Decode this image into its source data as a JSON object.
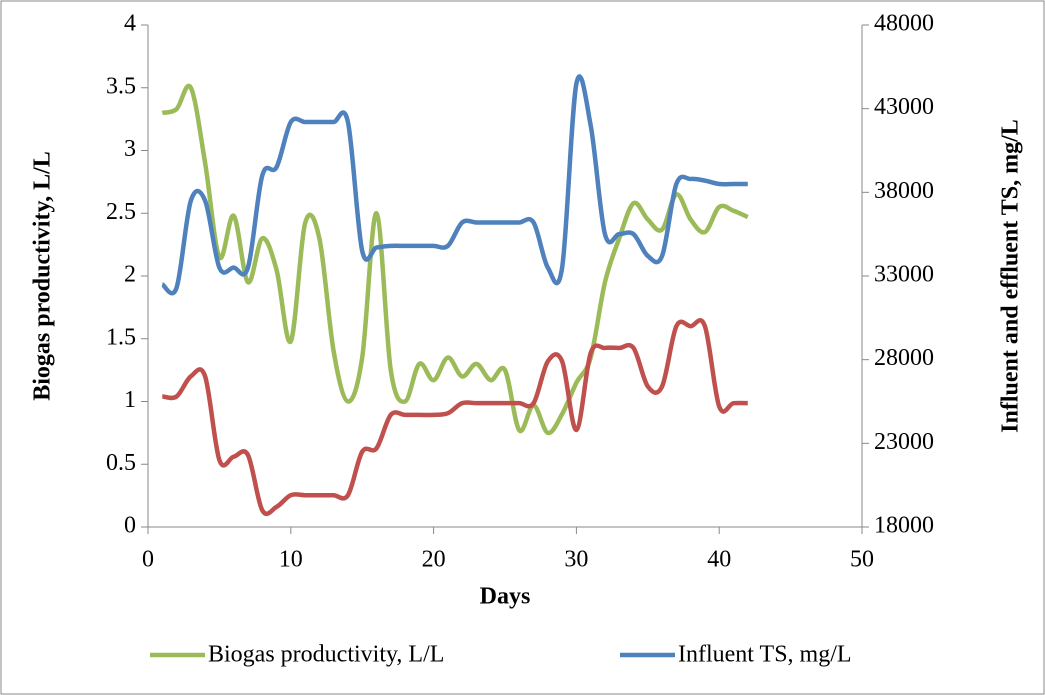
{
  "chart_data": {
    "type": "line",
    "x_label": "Days",
    "y_label": "Biogas productivity, L/L",
    "y2_label": "Influent and effluent TS, mg/L",
    "x": [
      1,
      2,
      3,
      4,
      5,
      6,
      7,
      8,
      9,
      10,
      11,
      12,
      13,
      14,
      15,
      16,
      17,
      18,
      19,
      20,
      21,
      22,
      23,
      24,
      25,
      26,
      27,
      28,
      29,
      30,
      31,
      32,
      33,
      34,
      35,
      36,
      37,
      38,
      39,
      40,
      41,
      42
    ],
    "xlim": [
      0,
      50
    ],
    "xticks": [
      0,
      10,
      20,
      30,
      40,
      50
    ],
    "ylim": [
      0,
      4
    ],
    "yticks": [
      0,
      0.5,
      1,
      1.5,
      2,
      2.5,
      3,
      3.5,
      4
    ],
    "y2lim": [
      18000,
      48000
    ],
    "y2ticks": [
      18000,
      23000,
      28000,
      33000,
      38000,
      43000,
      48000
    ],
    "series": [
      {
        "name": "Biogas productivity, L/L",
        "color": "#9bbb59",
        "values": [
          3.3,
          3.33,
          3.5,
          2.9,
          2.15,
          2.48,
          1.95,
          2.3,
          2.05,
          1.48,
          2.42,
          2.3,
          1.4,
          1.0,
          1.35,
          2.5,
          1.25,
          1.0,
          1.3,
          1.17,
          1.35,
          1.2,
          1.3,
          1.17,
          1.25,
          0.77,
          0.97,
          0.75,
          0.9,
          1.15,
          1.35,
          1.95,
          2.3,
          2.58,
          2.45,
          2.37,
          2.65,
          2.45,
          2.35,
          2.55,
          2.52,
          2.47
        ]
      },
      {
        "name": "Influent TS, mg/L",
        "color": "#4f81bd",
        "axis": "y2",
        "values": [
          32500,
          32300,
          37500,
          37500,
          33500,
          33500,
          33500,
          39000,
          39500,
          42200,
          42200,
          42200,
          42200,
          42200,
          34500,
          34700,
          34800,
          34800,
          34800,
          34800,
          34800,
          36200,
          36200,
          36200,
          36200,
          36200,
          36200,
          33500,
          33500,
          44500,
          42000,
          35500,
          35500,
          35500,
          34200,
          34200,
          38500,
          38800,
          38700,
          38500,
          38500,
          38500
        ]
      },
      {
        "color": "#c0504d",
        "axis": "y2",
        "values": [
          25800,
          25800,
          27000,
          27000,
          22000,
          22200,
          22300,
          19000,
          19200,
          19900,
          19900,
          19900,
          19900,
          19900,
          22500,
          22700,
          24700,
          24700,
          24700,
          24700,
          24800,
          25400,
          25400,
          25400,
          25400,
          25400,
          25400,
          27900,
          27900,
          23800,
          28400,
          28700,
          28700,
          28700,
          26400,
          26400,
          30000,
          30000,
          30000,
          25200,
          25400,
          25400
        ]
      }
    ]
  }
}
